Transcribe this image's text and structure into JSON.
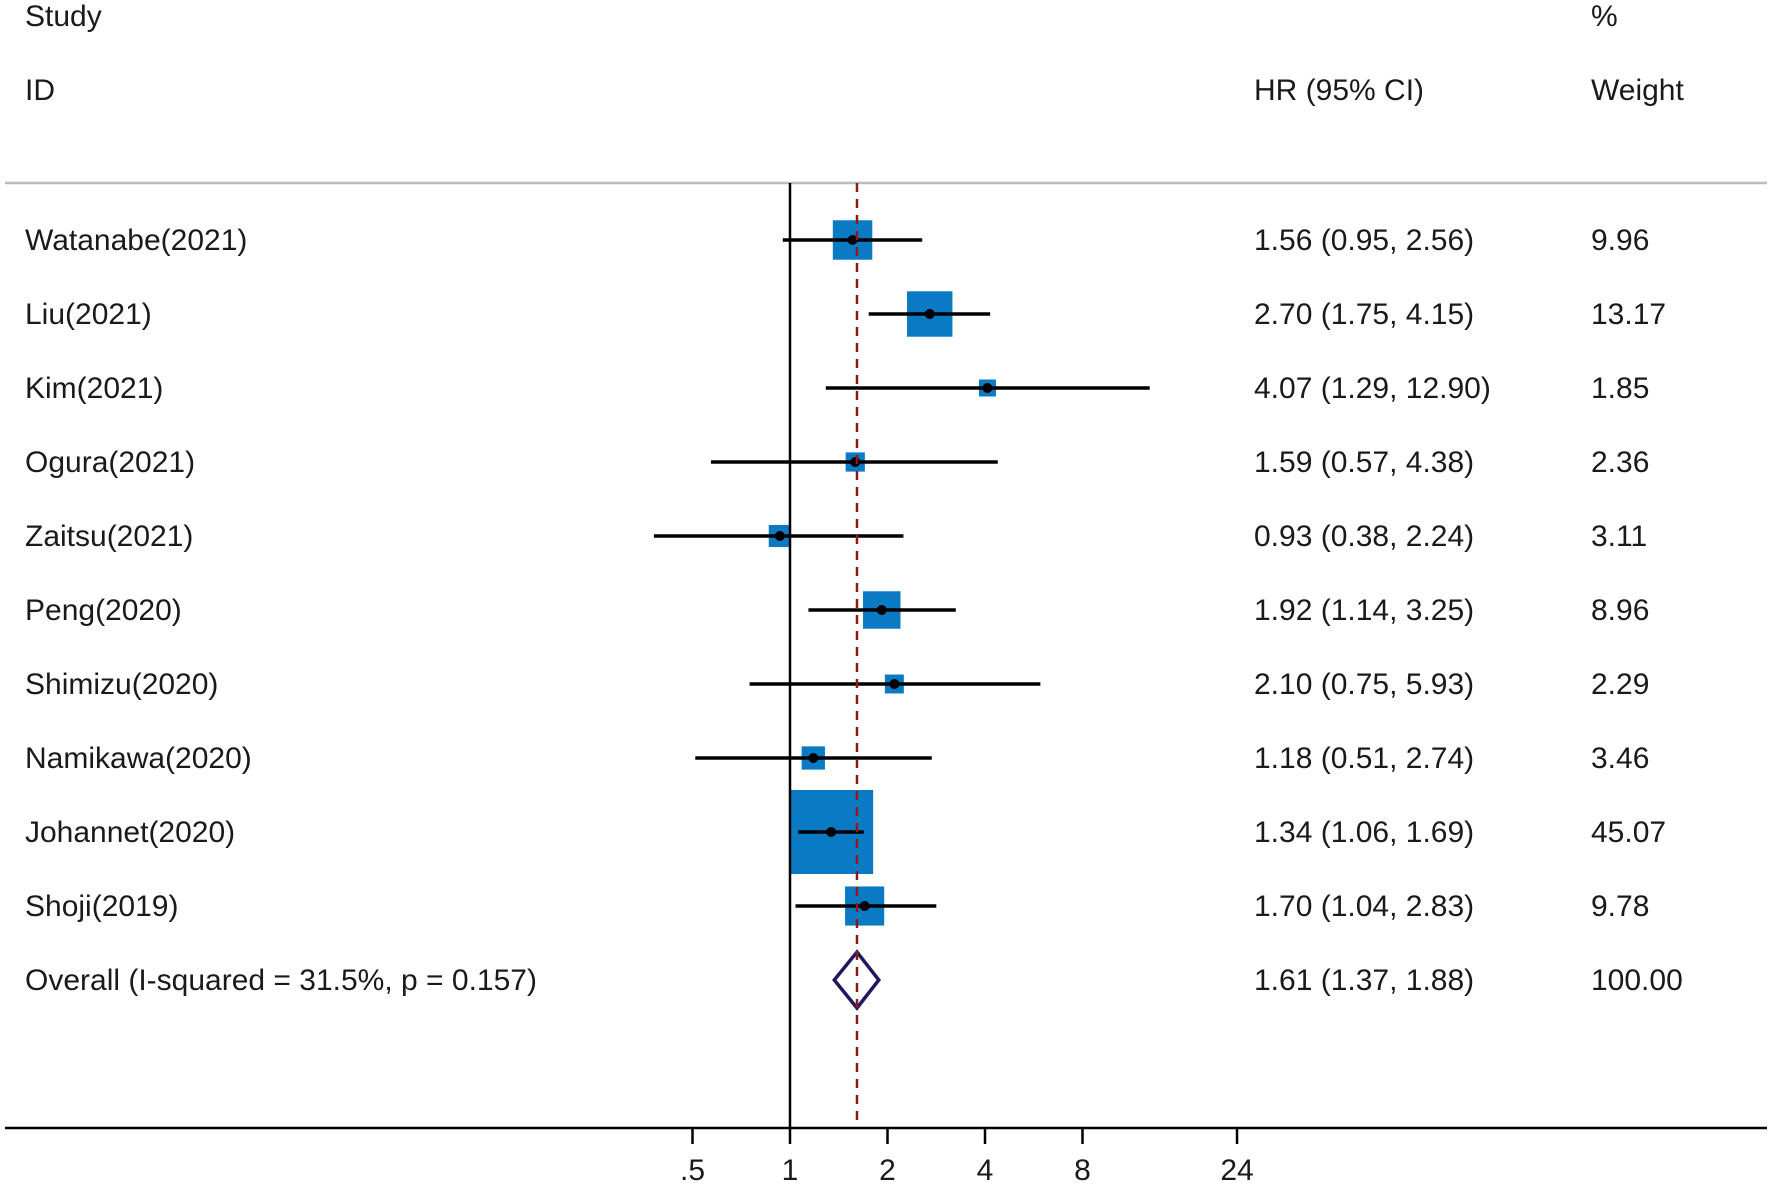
{
  "chart_data": {
    "type": "forest",
    "header": {
      "study_line1": "Study",
      "study_line2": "ID",
      "hr_label": "HR (95% CI)",
      "weight_line1": "%",
      "weight_line2": "Weight"
    },
    "studies": [
      {
        "label": "Watanabe(2021)",
        "hr": 1.56,
        "lo": 0.95,
        "hi": 2.56,
        "ci_text": "1.56 (0.95, 2.56)",
        "weight": 9.96,
        "weight_text": "9.96"
      },
      {
        "label": "Liu(2021)",
        "hr": 2.7,
        "lo": 1.75,
        "hi": 4.15,
        "ci_text": "2.70 (1.75, 4.15)",
        "weight": 13.17,
        "weight_text": "13.17"
      },
      {
        "label": "Kim(2021)",
        "hr": 4.07,
        "lo": 1.29,
        "hi": 12.9,
        "ci_text": "4.07 (1.29, 12.90)",
        "weight": 1.85,
        "weight_text": "1.85"
      },
      {
        "label": "Ogura(2021)",
        "hr": 1.59,
        "lo": 0.57,
        "hi": 4.38,
        "ci_text": "1.59 (0.57, 4.38)",
        "weight": 2.36,
        "weight_text": "2.36"
      },
      {
        "label": "Zaitsu(2021)",
        "hr": 0.93,
        "lo": 0.38,
        "hi": 2.24,
        "ci_text": "0.93 (0.38, 2.24)",
        "weight": 3.11,
        "weight_text": "3.11"
      },
      {
        "label": "Peng(2020)",
        "hr": 1.92,
        "lo": 1.14,
        "hi": 3.25,
        "ci_text": "1.92 (1.14, 3.25)",
        "weight": 8.96,
        "weight_text": "8.96"
      },
      {
        "label": "Shimizu(2020)",
        "hr": 2.1,
        "lo": 0.75,
        "hi": 5.93,
        "ci_text": "2.10 (0.75, 5.93)",
        "weight": 2.29,
        "weight_text": "2.29"
      },
      {
        "label": "Namikawa(2020)",
        "hr": 1.18,
        "lo": 0.51,
        "hi": 2.74,
        "ci_text": "1.18 (0.51, 2.74)",
        "weight": 3.46,
        "weight_text": "3.46"
      },
      {
        "label": "Johannet(2020)",
        "hr": 1.34,
        "lo": 1.06,
        "hi": 1.69,
        "ci_text": "1.34 (1.06, 1.69)",
        "weight": 45.07,
        "weight_text": "45.07"
      },
      {
        "label": "Shoji(2019)",
        "hr": 1.7,
        "lo": 1.04,
        "hi": 2.83,
        "ci_text": "1.70 (1.04, 2.83)",
        "weight": 9.78,
        "weight_text": "9.78"
      }
    ],
    "overall": {
      "label": "Overall  (I-squared = 31.5%, p = 0.157)",
      "hr": 1.61,
      "lo": 1.37,
      "hi": 1.88,
      "ci_text": "1.61 (1.37, 1.88)",
      "weight_text": "100.00"
    },
    "x_axis": {
      "scale": "log",
      "ticks": [
        0.5,
        1,
        2,
        4,
        8,
        24
      ],
      "tick_labels": [
        ".5",
        "1",
        "2",
        "4",
        "8",
        "24"
      ],
      "null_line": 1
    },
    "colors": {
      "box": "#0a7ac4",
      "line": "#000000",
      "diamond": "#1f1a5e",
      "overall_line": "#8b1a1a",
      "rule": "#bbbbbb"
    }
  }
}
